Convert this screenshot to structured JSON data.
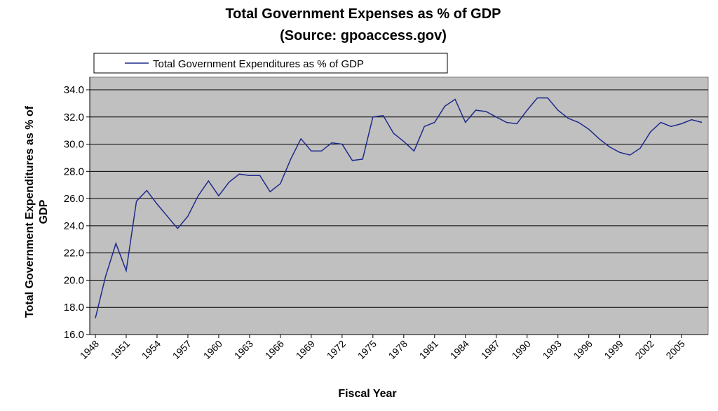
{
  "chart_data": {
    "type": "line",
    "title": "Total Government Expenses as % of GDP",
    "subtitle": "(Source: gpoaccess.gov)",
    "xlabel": "Fiscal Year",
    "ylabel_line1": "Total Government Expenditures as % of",
    "ylabel_line2": "GDP",
    "ylim": [
      16.0,
      34.0
    ],
    "yticks": [
      "16.0",
      "18.0",
      "20.0",
      "22.0",
      "24.0",
      "26.0",
      "28.0",
      "30.0",
      "32.0",
      "34.0"
    ],
    "xticks": [
      "1948",
      "1951",
      "1954",
      "1957",
      "1960",
      "1963",
      "1966",
      "1969",
      "1972",
      "1975",
      "1978",
      "1981",
      "1984",
      "1987",
      "1990",
      "1993",
      "1996",
      "1999",
      "2002",
      "2005"
    ],
    "grid": true,
    "legend_position": "top",
    "line_color": "#1f2a8a",
    "plot_bg": "#c0c0c0",
    "series": [
      {
        "name": "Total Government Expenditures as % of GDP",
        "x": [
          1948,
          1949,
          1950,
          1951,
          1952,
          1953,
          1954,
          1955,
          1956,
          1957,
          1958,
          1959,
          1960,
          1961,
          1962,
          1963,
          1964,
          1965,
          1966,
          1967,
          1968,
          1969,
          1970,
          1971,
          1972,
          1973,
          1974,
          1975,
          1976,
          1977,
          1978,
          1979,
          1980,
          1981,
          1982,
          1983,
          1984,
          1985,
          1986,
          1987,
          1988,
          1989,
          1990,
          1991,
          1992,
          1993,
          1994,
          1995,
          1996,
          1997,
          1998,
          1999,
          2000,
          2001,
          2002,
          2003,
          2004,
          2005,
          2006,
          2007
        ],
        "values": [
          17.2,
          20.3,
          22.7,
          20.7,
          25.8,
          26.6,
          25.6,
          24.7,
          23.8,
          24.7,
          26.2,
          27.3,
          26.2,
          27.2,
          27.8,
          27.7,
          27.7,
          26.5,
          27.1,
          28.9,
          30.4,
          29.5,
          29.5,
          30.1,
          30.0,
          28.8,
          28.9,
          32.0,
          32.1,
          30.8,
          30.2,
          29.5,
          31.3,
          31.6,
          32.8,
          33.3,
          31.6,
          32.5,
          32.4,
          32.0,
          31.6,
          31.5,
          32.5,
          33.4,
          33.4,
          32.5,
          31.9,
          31.6,
          31.1,
          30.4,
          29.8,
          29.4,
          29.2,
          29.7,
          30.9,
          31.6,
          31.3,
          31.5,
          31.8,
          31.6
        ]
      }
    ]
  }
}
